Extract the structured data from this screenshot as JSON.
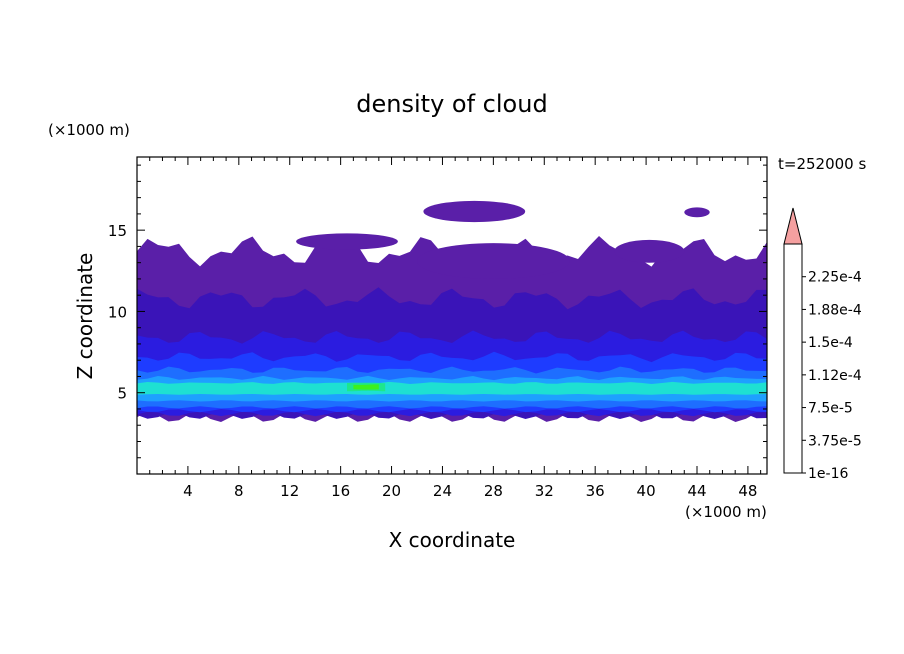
{
  "chart_data": {
    "type": "heatmap",
    "title": "density of cloud",
    "xlabel": "X coordinate",
    "ylabel": "Z coordinate",
    "x_unit": "(×1000 m)",
    "y_unit": "(×1000 m)",
    "time_label": "t=252000 s",
    "xlim": [
      0,
      49.5
    ],
    "ylim": [
      0,
      19.5
    ],
    "x_ticks": [
      "4",
      "8",
      "12",
      "16",
      "20",
      "24",
      "28",
      "32",
      "36",
      "40",
      "44",
      "48"
    ],
    "x_tick_values": [
      4,
      8,
      12,
      16,
      20,
      24,
      28,
      32,
      36,
      40,
      44,
      48
    ],
    "y_ticks": [
      "5",
      "10",
      "15"
    ],
    "y_tick_values": [
      5,
      10,
      15
    ],
    "colorbar_labels": [
      "2.25e-4",
      "1.88e-4",
      "1.5e-4",
      "1.12e-4",
      "7.5e-5",
      "3.75e-5",
      "1e-16"
    ],
    "colorbar_label_values": [
      0.000225,
      0.000188,
      0.00015,
      0.000112,
      7.5e-05,
      3.75e-05,
      1e-16
    ],
    "levels": [
      1e-16,
      1.875e-05,
      3.75e-05,
      5.625e-05,
      7.5e-05,
      9.375e-05,
      0.000112,
      0.00013125,
      0.00015,
      0.00016875,
      0.000188,
      0.00020625,
      0.000225,
      0.00024375
    ],
    "colors": [
      "#5a1fa8",
      "#3a14b8",
      "#2b1ce0",
      "#1e3cff",
      "#1e6eff",
      "#1ea0ff",
      "#1ee0d2",
      "#1ee68c",
      "#3cf01e",
      "#c8f01e",
      "#ffd21e",
      "#ffa01e",
      "#ff641e",
      "#ff2814"
    ],
    "overflow_color": "#f5a0a0",
    "cloud_layers": [
      {
        "level": 0,
        "x_range": [
          0,
          49.5
        ],
        "z_base": 3.5,
        "z_top": 13.7
      },
      {
        "level": 1,
        "x_range": [
          0,
          49.5
        ],
        "z_base": 3.6,
        "z_top": 10.8
      },
      {
        "level": 2,
        "x_range": [
          0,
          49.5
        ],
        "z_base": 3.7,
        "z_top": 8.4
      },
      {
        "level": 3,
        "x_range": [
          0,
          49.5
        ],
        "z_base": 3.9,
        "z_top": 7.2
      },
      {
        "level": 4,
        "x_range": [
          0,
          49.5
        ],
        "z_base": 4.1,
        "z_top": 6.4
      },
      {
        "level": 5,
        "x_range": [
          0,
          49.5
        ],
        "z_base": 4.5,
        "z_top": 5.9
      },
      {
        "level": 6,
        "x_range": [
          0,
          49.5
        ],
        "z_base": 4.9,
        "z_top": 5.6
      },
      {
        "level": 7,
        "x_range": [
          16.5,
          19.5
        ],
        "z_base": 5.1,
        "z_top": 5.6
      },
      {
        "level": 8,
        "x_range": [
          17.0,
          19.0
        ],
        "z_base": 5.2,
        "z_top": 5.5
      }
    ],
    "upper_patches": [
      {
        "level": 0,
        "x_range": [
          12.5,
          20.5
        ],
        "z_range": [
          13.8,
          14.8
        ]
      },
      {
        "level": 0,
        "x_range": [
          22.5,
          30.5
        ],
        "z_range": [
          15.5,
          16.8
        ]
      },
      {
        "level": 0,
        "x_range": [
          43.0,
          45.0
        ],
        "z_range": [
          15.8,
          16.4
        ]
      },
      {
        "level": 0,
        "x_range": [
          22.0,
          34.0
        ],
        "z_range": [
          12.0,
          14.2
        ]
      },
      {
        "level": 0,
        "x_range": [
          37.5,
          43.0
        ],
        "z_range": [
          13.0,
          14.4
        ]
      }
    ]
  }
}
